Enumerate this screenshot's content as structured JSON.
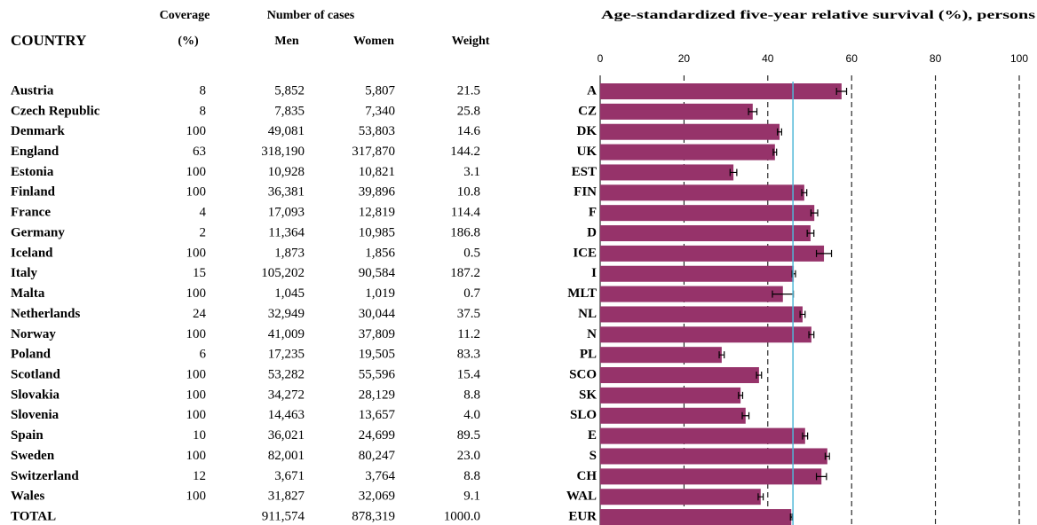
{
  "table": {
    "group_headers": [
      "Coverage",
      "Number of cases"
    ],
    "columns": [
      "COUNTRY",
      "(%)",
      "Men",
      "Women",
      "Weight"
    ],
    "rows": [
      [
        "Austria",
        "8",
        "5,852",
        "5,807",
        "21.5"
      ],
      [
        "Czech Republic",
        "8",
        "7,835",
        "7,340",
        "25.8"
      ],
      [
        "Denmark",
        "100",
        "49,081",
        "53,803",
        "14.6"
      ],
      [
        "England",
        "63",
        "318,190",
        "317,870",
        "144.2"
      ],
      [
        "Estonia",
        "100",
        "10,928",
        "10,821",
        "3.1"
      ],
      [
        "Finland",
        "100",
        "36,381",
        "39,896",
        "10.8"
      ],
      [
        "France",
        "4",
        "17,093",
        "12,819",
        "114.4"
      ],
      [
        "Germany",
        "2",
        "11,364",
        "10,985",
        "186.8"
      ],
      [
        "Iceland",
        "100",
        "1,873",
        "1,856",
        "0.5"
      ],
      [
        "Italy",
        "15",
        "105,202",
        "90,584",
        "187.2"
      ],
      [
        "Malta",
        "100",
        "1,045",
        "1,019",
        "0.7"
      ],
      [
        "Netherlands",
        "24",
        "32,949",
        "30,044",
        "37.5"
      ],
      [
        "Norway",
        "100",
        "41,009",
        "37,809",
        "11.2"
      ],
      [
        "Poland",
        "6",
        "17,235",
        "19,505",
        "83.3"
      ],
      [
        "Scotland",
        "100",
        "53,282",
        "55,596",
        "15.4"
      ],
      [
        "Slovakia",
        "100",
        "34,272",
        "28,129",
        "8.8"
      ],
      [
        "Slovenia",
        "100",
        "14,463",
        "13,657",
        "4.0"
      ],
      [
        "Spain",
        "10",
        "36,021",
        "24,699",
        "89.5"
      ],
      [
        "Sweden",
        "100",
        "82,001",
        "80,247",
        "23.0"
      ],
      [
        "Switzerland",
        "12",
        "3,671",
        "3,764",
        "8.8"
      ],
      [
        "Wales",
        "100",
        "31,827",
        "32,069",
        "9.1"
      ],
      [
        "TOTAL",
        null,
        "911,574",
        "878,319",
        "1000.0"
      ]
    ]
  },
  "chart_data": {
    "type": "bar",
    "orientation": "horizontal",
    "title": "Age-standardized five-year relative survival (%), persons",
    "categories": [
      "A",
      "CZ",
      "DK",
      "UK",
      "EST",
      "FIN",
      "F",
      "D",
      "ICE",
      "I",
      "MLT",
      "NL",
      "N",
      "PL",
      "SCO",
      "SK",
      "SLO",
      "E",
      "S",
      "CH",
      "WAL",
      "EUR"
    ],
    "values": [
      57.6,
      36.4,
      42.8,
      41.7,
      31.8,
      48.7,
      51.1,
      50.2,
      53.4,
      46.2,
      43.6,
      48.3,
      50.4,
      29.0,
      37.9,
      33.5,
      34.7,
      48.9,
      54.2,
      52.8,
      38.3,
      45.6
    ],
    "errors": [
      1.2,
      1.0,
      0.5,
      0.4,
      0.8,
      0.6,
      0.8,
      0.8,
      1.8,
      0.4,
      2.5,
      0.6,
      0.6,
      0.6,
      0.6,
      0.5,
      0.8,
      0.6,
      0.5,
      1.2,
      0.6,
      0.2
    ],
    "reference_line": 46,
    "color": "#96336a",
    "reference_color": "#4fb8d8",
    "xlim": [
      0,
      100
    ],
    "xticks": [
      0,
      20,
      40,
      60,
      80,
      100
    ],
    "grid": true
  }
}
